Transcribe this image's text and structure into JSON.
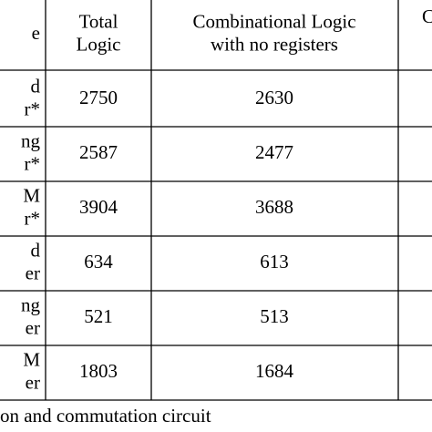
{
  "table": {
    "header": [
      [
        "e"
      ],
      [
        "Total",
        "Logic"
      ],
      [
        "Combinational Logic",
        "with no registers"
      ],
      [
        "C"
      ]
    ],
    "rows": [
      [
        [
          "d",
          "r*"
        ],
        "2750",
        "2630"
      ],
      [
        [
          "ng",
          "r*"
        ],
        "2587",
        "2477"
      ],
      [
        [
          "M",
          "r*"
        ],
        "3904",
        "3688"
      ],
      [
        [
          "d",
          "er"
        ],
        "634",
        "613"
      ],
      [
        [
          "ng",
          "er"
        ],
        "521",
        "513"
      ],
      [
        [
          "M",
          "er"
        ],
        "1803",
        "1684"
      ]
    ]
  },
  "footnote": "on and commutation circuit"
}
